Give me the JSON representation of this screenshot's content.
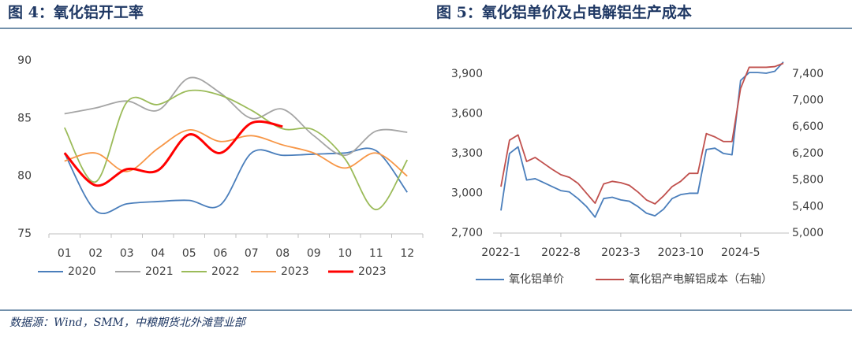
{
  "chart_data": [
    {
      "type": "line",
      "title": "图 4：氧化铝开工率",
      "categories": [
        "01",
        "02",
        "03",
        "04",
        "05",
        "06",
        "07",
        "08",
        "09",
        "10",
        "11",
        "12"
      ],
      "ylim": [
        75,
        90
      ],
      "yticks": [
        75,
        80,
        85,
        90
      ],
      "grid": false,
      "smooth": true,
      "series": [
        {
          "name": "2020",
          "color": "#4a7ebb",
          "values": [
            82,
            77,
            77.6,
            77.8,
            77.9,
            77.5,
            82,
            81.8,
            81.9,
            82,
            82.2,
            78.6
          ]
        },
        {
          "name": "2021",
          "color": "#a5a5a5",
          "values": [
            85.4,
            85.9,
            86.5,
            85.7,
            88.5,
            87.2,
            85,
            85.8,
            83.5,
            81.8,
            83.9,
            83.8
          ]
        },
        {
          "name": "2022",
          "color": "#9bbb59",
          "values": [
            84.2,
            79.5,
            86.4,
            86.2,
            87.4,
            87,
            85.7,
            84.1,
            84,
            81.5,
            77.1,
            81.4
          ]
        },
        {
          "name": "2023",
          "color": "#f79646",
          "values": [
            81.3,
            82,
            80.4,
            82.4,
            84,
            83,
            83.5,
            82.7,
            82,
            80.7,
            82,
            80
          ]
        },
        {
          "name": "2023",
          "color": "#ff0000",
          "width": 3,
          "values": [
            82,
            79.2,
            80.6,
            80.5,
            83.6,
            82,
            84.6,
            84.3,
            null,
            null,
            null,
            null
          ]
        }
      ]
    },
    {
      "type": "line",
      "title": "图 5：氧化铝单价及占电解铝生产成本",
      "categories": [
        "2022-1",
        null,
        null,
        null,
        null,
        null,
        null,
        "2022-8",
        null,
        null,
        null,
        null,
        null,
        null,
        "2023-3",
        null,
        null,
        null,
        null,
        null,
        null,
        "2023-10",
        null,
        null,
        null,
        null,
        null,
        null,
        "2024-5",
        null,
        null,
        null,
        null,
        null
      ],
      "ylim": [
        2700,
        4000
      ],
      "yticks": [
        {
          "value": 2700,
          "label": "2,700"
        },
        {
          "value": 3000,
          "label": "3,000"
        },
        {
          "value": 3300,
          "label": "3,300"
        },
        {
          "value": 3600,
          "label": "3,600"
        },
        {
          "value": 3900,
          "label": "3,900"
        }
      ],
      "y2lim": [
        5000,
        7600
      ],
      "y2ticks": [
        {
          "value": 5000,
          "label": "5,000"
        },
        {
          "value": 5400,
          "label": "5,400"
        },
        {
          "value": 5800,
          "label": "5,800"
        },
        {
          "value": 6200,
          "label": "6,200"
        },
        {
          "value": 6600,
          "label": "6,600"
        },
        {
          "value": 7000,
          "label": "7,000"
        },
        {
          "value": 7400,
          "label": "7,400"
        }
      ],
      "grid": false,
      "smooth": false,
      "series": [
        {
          "name": "氧化铝单价",
          "color": "#4a7ebb",
          "values": [
            2870,
            3300,
            3350,
            3100,
            3110,
            3080,
            3050,
            3020,
            3010,
            2960,
            2900,
            2820,
            2960,
            2970,
            2950,
            2940,
            2900,
            2850,
            2830,
            2880,
            2960,
            2990,
            3000,
            3000,
            3330,
            3340,
            3300,
            3290,
            3850,
            3910,
            3910,
            3905,
            3920,
            3990
          ]
        },
        {
          "name": "氧化铝产电解铝成本（右轴）",
          "color": "#c0504d",
          "axis": "y2",
          "values": [
            5700,
            6400,
            6480,
            6080,
            6140,
            6050,
            5960,
            5880,
            5840,
            5750,
            5600,
            5450,
            5740,
            5780,
            5760,
            5720,
            5620,
            5500,
            5440,
            5560,
            5700,
            5780,
            5900,
            5900,
            6500,
            6450,
            6380,
            6380,
            7180,
            7500,
            7500,
            7500,
            7510,
            7560
          ]
        }
      ]
    }
  ],
  "source": "数据源：Wind，SMM，中粮期货北外滩营业部"
}
